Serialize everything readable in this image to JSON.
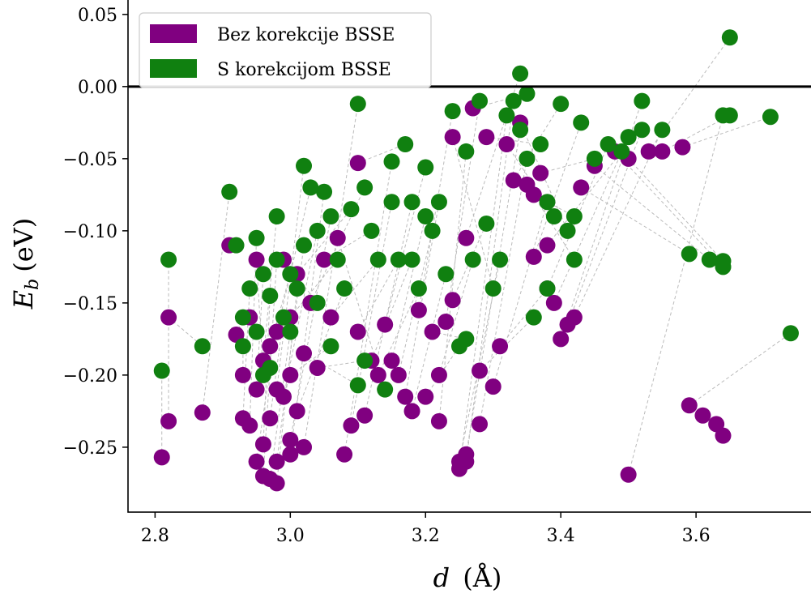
{
  "chart_data": {
    "type": "scatter",
    "title": "",
    "xlabel_var": "d",
    "xlabel_unit": "(Å)",
    "ylabel_var": "E",
    "ylabel_sub": "b",
    "ylabel_unit": "(eV)",
    "xlim": [
      2.76,
      3.77
    ],
    "ylim": [
      -0.295,
      0.06
    ],
    "xticks": [
      2.8,
      3.0,
      3.2,
      3.4,
      3.6
    ],
    "yticks": [
      0.05,
      0.0,
      -0.05,
      -0.1,
      -0.15,
      -0.2,
      -0.25
    ],
    "xtick_labels": [
      "2.8",
      "3.0",
      "3.2",
      "3.4",
      "3.6"
    ],
    "ytick_labels": [
      "0.05",
      "0.00",
      "−0.05",
      "−0.10",
      "−0.15",
      "−0.20",
      "−0.25"
    ],
    "grid": false,
    "reference_line_y": 0.0,
    "legend_position": "top-left",
    "connector_color": "#bbbbbb",
    "series": [
      {
        "name": "Bez korekcije BSSE",
        "color": "#800080",
        "points": [
          [
            2.81,
            -0.257
          ],
          [
            2.82,
            -0.232
          ],
          [
            2.82,
            -0.16
          ],
          [
            2.87,
            -0.226
          ],
          [
            2.91,
            -0.11
          ],
          [
            2.92,
            -0.172
          ],
          [
            2.93,
            -0.2
          ],
          [
            2.93,
            -0.23
          ],
          [
            2.94,
            -0.235
          ],
          [
            2.94,
            -0.16
          ],
          [
            2.95,
            -0.21
          ],
          [
            2.95,
            -0.12
          ],
          [
            2.95,
            -0.26
          ],
          [
            2.96,
            -0.248
          ],
          [
            2.96,
            -0.19
          ],
          [
            2.96,
            -0.27
          ],
          [
            2.97,
            -0.23
          ],
          [
            2.97,
            -0.18
          ],
          [
            2.97,
            -0.272
          ],
          [
            2.98,
            -0.275
          ],
          [
            2.98,
            -0.26
          ],
          [
            2.98,
            -0.21
          ],
          [
            2.98,
            -0.17
          ],
          [
            2.99,
            -0.215
          ],
          [
            2.99,
            -0.12
          ],
          [
            3.0,
            -0.255
          ],
          [
            3.0,
            -0.245
          ],
          [
            3.0,
            -0.2
          ],
          [
            3.0,
            -0.16
          ],
          [
            3.01,
            -0.225
          ],
          [
            3.01,
            -0.13
          ],
          [
            3.02,
            -0.185
          ],
          [
            3.02,
            -0.25
          ],
          [
            3.03,
            -0.15
          ],
          [
            3.04,
            -0.195
          ],
          [
            3.05,
            -0.12
          ],
          [
            3.06,
            -0.16
          ],
          [
            3.07,
            -0.105
          ],
          [
            3.08,
            -0.255
          ],
          [
            3.09,
            -0.235
          ],
          [
            3.1,
            -0.17
          ],
          [
            3.1,
            -0.053
          ],
          [
            3.11,
            -0.228
          ],
          [
            3.12,
            -0.19
          ],
          [
            3.13,
            -0.2
          ],
          [
            3.14,
            -0.165
          ],
          [
            3.15,
            -0.19
          ],
          [
            3.16,
            -0.2
          ],
          [
            3.17,
            -0.215
          ],
          [
            3.18,
            -0.225
          ],
          [
            3.19,
            -0.155
          ],
          [
            3.2,
            -0.215
          ],
          [
            3.21,
            -0.17
          ],
          [
            3.22,
            -0.232
          ],
          [
            3.22,
            -0.2
          ],
          [
            3.23,
            -0.163
          ],
          [
            3.24,
            -0.148
          ],
          [
            3.24,
            -0.035
          ],
          [
            3.25,
            -0.26
          ],
          [
            3.25,
            -0.265
          ],
          [
            3.26,
            -0.26
          ],
          [
            3.26,
            -0.255
          ],
          [
            3.26,
            -0.105
          ],
          [
            3.27,
            -0.015
          ],
          [
            3.28,
            -0.234
          ],
          [
            3.28,
            -0.197
          ],
          [
            3.29,
            -0.035
          ],
          [
            3.3,
            -0.208
          ],
          [
            3.31,
            -0.18
          ],
          [
            3.32,
            -0.04
          ],
          [
            3.33,
            -0.065
          ],
          [
            3.34,
            -0.025
          ],
          [
            3.35,
            -0.068
          ],
          [
            3.36,
            -0.075
          ],
          [
            3.36,
            -0.118
          ],
          [
            3.37,
            -0.06
          ],
          [
            3.38,
            -0.14
          ],
          [
            3.38,
            -0.11
          ],
          [
            3.39,
            -0.15
          ],
          [
            3.4,
            -0.175
          ],
          [
            3.41,
            -0.165
          ],
          [
            3.42,
            -0.16
          ],
          [
            3.43,
            -0.07
          ],
          [
            3.45,
            -0.055
          ],
          [
            3.48,
            -0.045
          ],
          [
            3.5,
            -0.05
          ],
          [
            3.5,
            -0.269
          ],
          [
            3.53,
            -0.045
          ],
          [
            3.55,
            -0.045
          ],
          [
            3.58,
            -0.042
          ],
          [
            3.59,
            -0.221
          ],
          [
            3.61,
            -0.228
          ],
          [
            3.63,
            -0.234
          ],
          [
            3.64,
            -0.242
          ]
        ]
      },
      {
        "name": "S korekcijom BSSE",
        "color": "#108010",
        "points": [
          [
            2.81,
            -0.197
          ],
          [
            2.82,
            -0.12
          ],
          [
            2.87,
            -0.18
          ],
          [
            2.91,
            -0.073
          ],
          [
            2.92,
            -0.11
          ],
          [
            2.93,
            -0.16
          ],
          [
            2.93,
            -0.18
          ],
          [
            2.94,
            -0.14
          ],
          [
            2.95,
            -0.105
          ],
          [
            2.95,
            -0.17
          ],
          [
            2.96,
            -0.13
          ],
          [
            2.96,
            -0.2
          ],
          [
            2.97,
            -0.195
          ],
          [
            2.97,
            -0.145
          ],
          [
            2.98,
            -0.09
          ],
          [
            2.98,
            -0.12
          ],
          [
            2.99,
            -0.16
          ],
          [
            3.0,
            -0.13
          ],
          [
            3.0,
            -0.17
          ],
          [
            3.01,
            -0.14
          ],
          [
            3.02,
            -0.11
          ],
          [
            3.02,
            -0.055
          ],
          [
            3.03,
            -0.07
          ],
          [
            3.04,
            -0.1
          ],
          [
            3.04,
            -0.15
          ],
          [
            3.05,
            -0.073
          ],
          [
            3.06,
            -0.09
          ],
          [
            3.06,
            -0.18
          ],
          [
            3.07,
            -0.12
          ],
          [
            3.08,
            -0.14
          ],
          [
            3.09,
            -0.085
          ],
          [
            3.1,
            -0.207
          ],
          [
            3.1,
            -0.012
          ],
          [
            3.11,
            -0.07
          ],
          [
            3.11,
            -0.19
          ],
          [
            3.12,
            -0.1
          ],
          [
            3.13,
            -0.12
          ],
          [
            3.14,
            -0.21
          ],
          [
            3.15,
            -0.052
          ],
          [
            3.15,
            -0.08
          ],
          [
            3.16,
            -0.12
          ],
          [
            3.17,
            -0.04
          ],
          [
            3.18,
            -0.08
          ],
          [
            3.18,
            -0.12
          ],
          [
            3.19,
            -0.14
          ],
          [
            3.2,
            -0.056
          ],
          [
            3.2,
            -0.09
          ],
          [
            3.21,
            -0.1
          ],
          [
            3.22,
            -0.08
          ],
          [
            3.23,
            -0.13
          ],
          [
            3.24,
            -0.017
          ],
          [
            3.25,
            -0.18
          ],
          [
            3.26,
            -0.175
          ],
          [
            3.26,
            -0.045
          ],
          [
            3.27,
            -0.12
          ],
          [
            3.28,
            -0.01
          ],
          [
            3.29,
            -0.095
          ],
          [
            3.3,
            -0.14
          ],
          [
            3.31,
            -0.12
          ],
          [
            3.32,
            -0.02
          ],
          [
            3.33,
            -0.01
          ],
          [
            3.34,
            -0.03
          ],
          [
            3.34,
            0.009
          ],
          [
            3.35,
            -0.005
          ],
          [
            3.35,
            -0.05
          ],
          [
            3.36,
            -0.16
          ],
          [
            3.37,
            -0.04
          ],
          [
            3.38,
            -0.08
          ],
          [
            3.38,
            -0.14
          ],
          [
            3.39,
            -0.09
          ],
          [
            3.4,
            -0.012
          ],
          [
            3.41,
            -0.1
          ],
          [
            3.42,
            -0.12
          ],
          [
            3.42,
            -0.09
          ],
          [
            3.43,
            -0.025
          ],
          [
            3.45,
            -0.05
          ],
          [
            3.47,
            -0.04
          ],
          [
            3.49,
            -0.045
          ],
          [
            3.5,
            -0.035
          ],
          [
            3.52,
            -0.01
          ],
          [
            3.52,
            -0.03
          ],
          [
            3.55,
            -0.03
          ],
          [
            3.59,
            -0.116
          ],
          [
            3.62,
            -0.12
          ],
          [
            3.64,
            -0.125
          ],
          [
            3.64,
            -0.121
          ],
          [
            3.64,
            -0.02
          ],
          [
            3.65,
            0.034
          ],
          [
            3.65,
            -0.02
          ],
          [
            3.71,
            -0.021
          ],
          [
            3.74,
            -0.171
          ]
        ]
      }
    ]
  }
}
